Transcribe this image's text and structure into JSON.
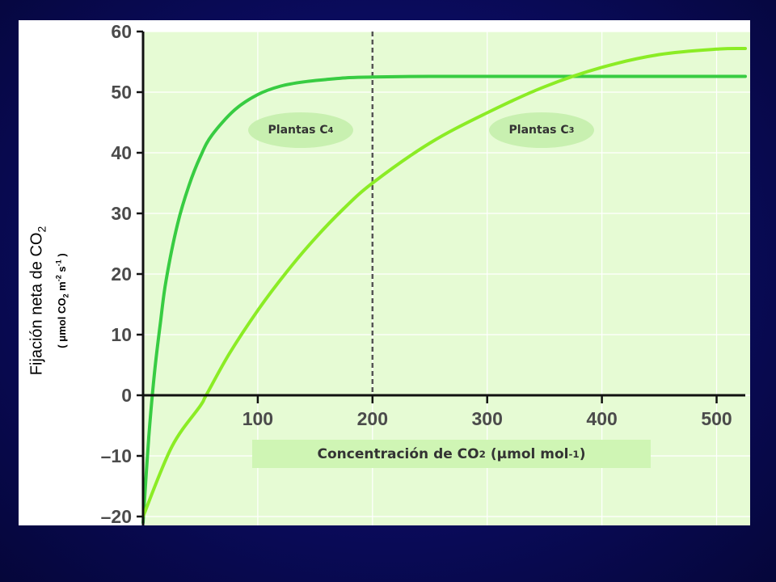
{
  "colors": {
    "background": "#0a0b5c",
    "plot_area": "#e6fbd4",
    "c4_line": "#38cc42",
    "c3_line": "#8bec25",
    "axis": "#111111",
    "divider": "#555555"
  },
  "labels": {
    "ylabel_main": "Fijación neta de CO",
    "ylabel_main_sub": "2",
    "ylabel_unit_open": "(",
    "ylabel_unit_mu": "μ",
    "ylabel_unit_mol": "mol CO",
    "ylabel_unit_co2_sub": "2",
    "ylabel_unit_m": "m",
    "ylabel_unit_m_sup": "-2",
    "ylabel_unit_s": "s",
    "ylabel_unit_s_sup": "-1",
    "ylabel_unit_close": ")",
    "xlabel_main": "Concentración de CO",
    "xlabel_sub": "2",
    "xlabel_unit": "(μmol mol",
    "xlabel_sup": "-1",
    "xlabel_close": ")",
    "c4_label": "Plantas C",
    "c4_sub": "4",
    "c3_label": "Plantas C",
    "c3_sub": "3"
  },
  "chart_data": {
    "type": "line",
    "xlim": [
      0,
      525
    ],
    "ylim": [
      -22,
      62
    ],
    "x_ticks": [
      100,
      200,
      300,
      400,
      500
    ],
    "y_ticks": [
      60,
      50,
      40,
      30,
      20,
      10,
      0,
      -10,
      -20
    ],
    "y_tick_labels": [
      "60",
      "50",
      "40",
      "30",
      "20",
      "10",
      "0",
      "–10",
      "–20"
    ],
    "grid": true,
    "reference_line_x": 200,
    "series": [
      {
        "name": "Plantas C4",
        "x": [
          0,
          5,
          10,
          15,
          20,
          30,
          40,
          50,
          60,
          80,
          100,
          120,
          140,
          160,
          180,
          200,
          250,
          300,
          400,
          525
        ],
        "y": [
          -21,
          -6.8,
          3.8,
          11.8,
          18.9,
          28.2,
          34.6,
          39.4,
          42.9,
          47.1,
          49.6,
          51.0,
          51.7,
          52.1,
          52.4,
          52.5,
          52.6,
          52.6,
          52.6,
          52.6
        ]
      },
      {
        "name": "Plantas C3",
        "x": [
          0,
          25,
          50,
          55,
          75,
          100,
          125,
          150,
          175,
          200,
          250,
          300,
          350,
          400,
          450,
          500,
          525
        ],
        "y": [
          -20,
          -8.5,
          -1.7,
          0,
          6.8,
          14.0,
          20.3,
          25.9,
          30.8,
          35.0,
          41.6,
          46.6,
          50.9,
          54.1,
          56.2,
          57.1,
          57.2
        ]
      }
    ]
  }
}
